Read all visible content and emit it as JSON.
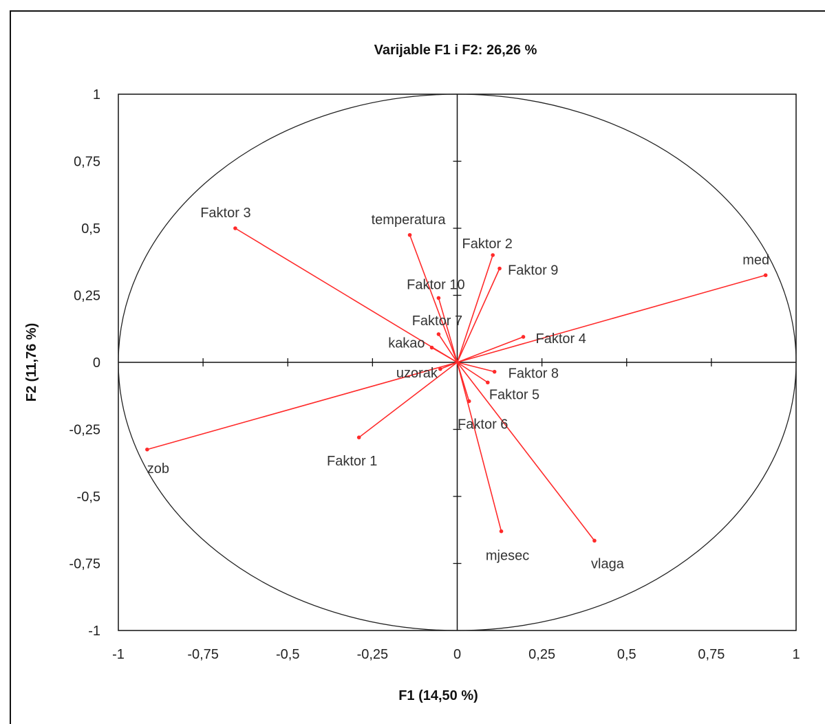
{
  "chart_data": {
    "type": "scatter",
    "subtype": "correlation-circle",
    "title": "Varijable F1 i F2: 26,26 %",
    "xlabel": "F1 (14,50 %)",
    "ylabel": "F2 (11,76 %)",
    "xlim": [
      -1,
      1
    ],
    "ylim": [
      -1,
      1
    ],
    "x_ticks": [
      "-1",
      "-0,75",
      "-0,5",
      "-0,25",
      "0",
      "0,25",
      "0,5",
      "0,75",
      "1"
    ],
    "y_ticks": [
      "1",
      "0,75",
      "0,5",
      "0,25",
      "0",
      "-0,25",
      "-0,5",
      "-0,75",
      "-1"
    ],
    "unit_circle": true,
    "vector_color": "#ff2a2a",
    "points": [
      {
        "label": "med",
        "x": 0.91,
        "y": 0.325
      },
      {
        "label": "zob",
        "x": -0.915,
        "y": -0.325
      },
      {
        "label": "Faktor 3",
        "x": -0.655,
        "y": 0.5
      },
      {
        "label": "temperatura",
        "x": -0.14,
        "y": 0.475
      },
      {
        "label": "Faktor 2",
        "x": 0.105,
        "y": 0.4
      },
      {
        "label": "Faktor 9",
        "x": 0.125,
        "y": 0.35
      },
      {
        "label": "Faktor 10",
        "x": -0.055,
        "y": 0.24
      },
      {
        "label": "Faktor 7",
        "x": -0.055,
        "y": 0.105
      },
      {
        "label": "Faktor 4",
        "x": 0.195,
        "y": 0.095
      },
      {
        "label": "kakao",
        "x": -0.075,
        "y": 0.055
      },
      {
        "label": "uzorak",
        "x": -0.05,
        "y": -0.025
      },
      {
        "label": "Faktor 8",
        "x": 0.11,
        "y": -0.035
      },
      {
        "label": "Faktor 5",
        "x": 0.09,
        "y": -0.075
      },
      {
        "label": "Faktor 6",
        "x": 0.035,
        "y": -0.145
      },
      {
        "label": "Faktor 1",
        "x": -0.29,
        "y": -0.28
      },
      {
        "label": "mjesec",
        "x": 0.13,
        "y": -0.63
      },
      {
        "label": "vlaga",
        "x": 0.405,
        "y": -0.665
      }
    ]
  }
}
